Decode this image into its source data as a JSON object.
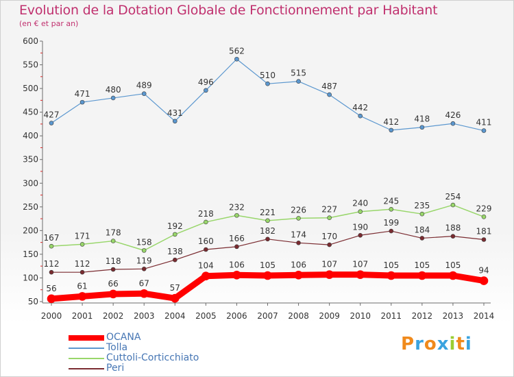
{
  "title": "Evolution de la Dotation Globale de Fonctionnement par Habitant",
  "subtitle": "(en € et par an)",
  "logo": "Proxiti",
  "chart_data": {
    "type": "line",
    "x": [
      "2000",
      "2001",
      "2002",
      "2003",
      "2004",
      "2005",
      "2006",
      "2007",
      "2008",
      "2009",
      "2010",
      "2011",
      "2012",
      "2013",
      "2014"
    ],
    "ylim": [
      50,
      600
    ],
    "yticks": [
      50,
      100,
      150,
      200,
      250,
      300,
      350,
      400,
      450,
      500,
      550,
      600
    ],
    "grid": false,
    "legend_position": "bottom-left",
    "series": [
      {
        "name": "Tolla",
        "color": "#5b97cf",
        "values": [
          427,
          471,
          480,
          489,
          431,
          496,
          562,
          510,
          515,
          487,
          442,
          412,
          418,
          426,
          411
        ]
      },
      {
        "name": "Cuttoli-Corticchiato",
        "color": "#98d66a",
        "values": [
          167,
          171,
          178,
          158,
          192,
          218,
          232,
          221,
          226,
          227,
          240,
          245,
          235,
          254,
          229
        ]
      },
      {
        "name": "Peri",
        "color": "#7a2b30",
        "values": [
          112,
          112,
          118,
          119,
          138,
          160,
          166,
          182,
          174,
          170,
          190,
          199,
          184,
          188,
          181
        ]
      },
      {
        "name": "OCANA",
        "color": "#ff0000",
        "values": [
          56,
          61,
          66,
          67,
          57,
          104,
          106,
          105,
          106,
          107,
          107,
          105,
          105,
          105,
          94
        ]
      }
    ],
    "legend_order": [
      "OCANA",
      "Tolla",
      "Cuttoli-Corticchiato",
      "Peri"
    ]
  }
}
